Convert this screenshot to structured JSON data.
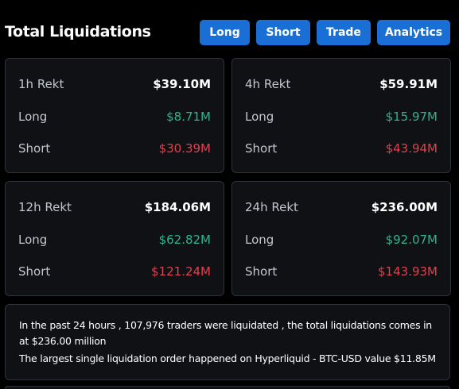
{
  "header": {
    "title": "Total Liquidations",
    "tabs": [
      {
        "label": "Long"
      },
      {
        "label": "Short"
      },
      {
        "label": "Trade"
      },
      {
        "label": "Analytics"
      }
    ]
  },
  "cards": [
    {
      "period": "1h Rekt",
      "total": "$39.10M",
      "long_label": "Long",
      "long": "$8.71M",
      "short_label": "Short",
      "short": "$30.39M"
    },
    {
      "period": "4h Rekt",
      "total": "$59.91M",
      "long_label": "Long",
      "long": "$15.97M",
      "short_label": "Short",
      "short": "$43.94M"
    },
    {
      "period": "12h Rekt",
      "total": "$184.06M",
      "long_label": "Long",
      "long": "$62.82M",
      "short_label": "Short",
      "short": "$121.24M"
    },
    {
      "period": "24h Rekt",
      "total": "$236.00M",
      "long_label": "Long",
      "long": "$92.07M",
      "short_label": "Short",
      "short": "$143.93M"
    }
  ],
  "summary": {
    "line1": "In the past 24 hours , 107,976 traders were liquidated , the total liquidations comes in",
    "line2": "at $236.00 million",
    "line3": "The largest single liquidation order happened on Hyperliquid - BTC-USD value $11.85M"
  },
  "colors": {
    "background": "#000000",
    "card": "#0f1114",
    "border": "#2e333b",
    "tab": "#1a6fd6",
    "long": "#2fb587",
    "short": "#e0414f"
  }
}
